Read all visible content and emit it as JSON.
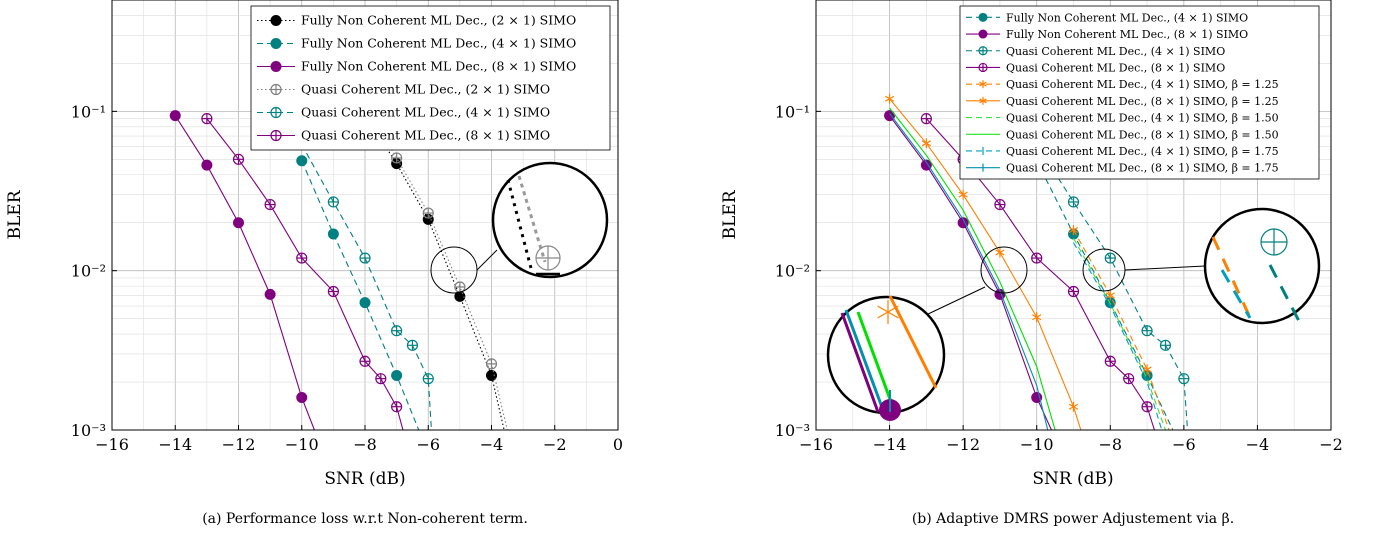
{
  "chart_data": [
    {
      "type": "line",
      "caption": "(a) Performance loss w.r.t Non-coherent term.",
      "xlabel": "SNR (dB)",
      "ylabel": "BLER",
      "xlim": [
        -16,
        0
      ],
      "ylim": [
        0.001,
        0.5
      ],
      "yscale": "log",
      "grid": true,
      "legend_placement": "top-right",
      "xticks": [
        -16,
        -14,
        -12,
        -10,
        -8,
        -6,
        -4,
        -2,
        0
      ],
      "xtick_labels": [
        "−16",
        "−14",
        "−12",
        "−10",
        "−8",
        "−6",
        "−4",
        "−2",
        "0"
      ],
      "yticks": [
        0.1,
        0.01,
        0.001
      ],
      "ytick_labels": [
        "10⁻¹",
        "10⁻²",
        "10⁻³"
      ],
      "series": [
        {
          "name": "Fully Non Coherent ML Dec., (2 × 1) SIMO",
          "color": "#000000",
          "dash": "1.5,2.5",
          "marker": "filled",
          "x": [
            -8,
            -7,
            -6,
            -5,
            -4,
            -3.6
          ],
          "y": [
            0.095,
            0.047,
            0.021,
            0.0069,
            0.0022,
            0.001
          ],
          "markers_upto": 5
        },
        {
          "name": "Fully Non Coherent ML Dec., (4 × 1) SIMO",
          "color": "#008080",
          "dash": "6,4",
          "marker": "filled",
          "x": [
            -10,
            -9,
            -8,
            -7,
            -6.3
          ],
          "y": [
            0.049,
            0.017,
            0.0063,
            0.0022,
            0.001
          ],
          "markers_upto": 4
        },
        {
          "name": "Fully Non Coherent ML Dec., (8 × 1) SIMO",
          "color": "#800080",
          "dash": "",
          "marker": "filled",
          "x": [
            -14,
            -13,
            -12,
            -11,
            -10,
            -9.6
          ],
          "y": [
            0.094,
            0.046,
            0.02,
            0.0071,
            0.0016,
            0.001
          ],
          "markers_upto": 5
        },
        {
          "name": "Quasi Coherent ML Dec., (2 × 1) SIMO",
          "color": "#808080",
          "dash": "1.5,2.5",
          "marker": "oplus",
          "x": [
            -8,
            -7,
            -6,
            -5,
            -4,
            -3.5
          ],
          "y": [
            0.11,
            0.051,
            0.023,
            0.0079,
            0.0026,
            0.001
          ],
          "markers_upto": 5
        },
        {
          "name": "Quasi Coherent ML Dec., (4 × 1) SIMO",
          "color": "#008080",
          "dash": "6,4",
          "marker": "oplus",
          "x": [
            -10,
            -9,
            -8,
            -7,
            -6.5,
            -6,
            -5.9
          ],
          "y": [
            0.062,
            0.027,
            0.012,
            0.0042,
            0.0034,
            0.0021,
            0.001
          ],
          "markers_upto": 6
        },
        {
          "name": "Quasi Coherent ML Dec., (8 × 1) SIMO",
          "color": "#800080",
          "dash": "",
          "marker": "oplus",
          "x": [
            -13,
            -12,
            -11,
            -10,
            -9,
            -8,
            -7.5,
            -7,
            -6.8
          ],
          "y": [
            0.09,
            0.05,
            0.026,
            0.012,
            0.0074,
            0.0027,
            0.0021,
            0.0014,
            0.001
          ],
          "markers_upto": 8
        }
      ]
    },
    {
      "type": "line",
      "caption": "(b) Adaptive DMRS power Adjustement via β.",
      "xlabel": "SNR (dB)",
      "ylabel": "BLER",
      "xlim": [
        -16,
        -2
      ],
      "ylim": [
        0.001,
        0.5
      ],
      "yscale": "log",
      "grid": true,
      "legend_placement": "top-right",
      "xticks": [
        -16,
        -14,
        -12,
        -10,
        -8,
        -6,
        -4,
        -2
      ],
      "xtick_labels": [
        "−16",
        "−14",
        "−12",
        "−10",
        "−8",
        "−6",
        "−4",
        "−2"
      ],
      "yticks": [
        0.1,
        0.01,
        0.001
      ],
      "ytick_labels": [
        "10⁻¹",
        "10⁻²",
        "10⁻³"
      ],
      "series": [
        {
          "name": "Fully Non Coherent ML Dec., (4 × 1) SIMO",
          "color": "#008080",
          "dash": "6,4",
          "marker": "filled",
          "x": [
            -10,
            -9,
            -8,
            -7,
            -6.3
          ],
          "y": [
            0.049,
            0.017,
            0.0063,
            0.0022,
            0.001
          ],
          "markers_upto": 4
        },
        {
          "name": "Fully Non Coherent ML Dec., (8 × 1) SIMO",
          "color": "#800080",
          "dash": "",
          "marker": "filled",
          "x": [
            -14,
            -13,
            -12,
            -11,
            -10,
            -9.6
          ],
          "y": [
            0.094,
            0.046,
            0.02,
            0.0071,
            0.0016,
            0.001
          ],
          "markers_upto": 5
        },
        {
          "name": "Quasi Coherent ML Dec., (4 × 1) SIMO",
          "color": "#008080",
          "dash": "6,4",
          "marker": "oplus",
          "x": [
            -10,
            -9,
            -8,
            -7,
            -6.5,
            -6,
            -5.9
          ],
          "y": [
            0.062,
            0.027,
            0.012,
            0.0042,
            0.0034,
            0.0021,
            0.001
          ],
          "markers_upto": 6
        },
        {
          "name": "Quasi Coherent ML Dec., (8 × 1) SIMO",
          "color": "#800080",
          "dash": "",
          "marker": "oplus",
          "x": [
            -13,
            -12,
            -11,
            -10,
            -9,
            -8,
            -7.5,
            -7,
            -6.8
          ],
          "y": [
            0.09,
            0.05,
            0.026,
            0.012,
            0.0074,
            0.0027,
            0.0021,
            0.0014,
            0.001
          ],
          "markers_upto": 8
        },
        {
          "name": "Quasi Coherent ML Dec., (4 × 1) SIMO, β = 1.25",
          "color": "#FF8000",
          "dash": "6,4",
          "marker": "star",
          "x": [
            -9,
            -8,
            -7,
            -6.4
          ],
          "y": [
            0.018,
            0.007,
            0.0024,
            0.001
          ],
          "markers_upto": 3
        },
        {
          "name": "Quasi Coherent ML Dec., (8 × 1) SIMO, β = 1.25",
          "color": "#FF8000",
          "dash": "",
          "marker": "star",
          "x": [
            -14,
            -13,
            -12,
            -11,
            -10,
            -9,
            -8.8
          ],
          "y": [
            0.12,
            0.063,
            0.03,
            0.013,
            0.0051,
            0.0014,
            0.001
          ],
          "markers_upto": 6
        },
        {
          "name": "Quasi Coherent ML Dec., (4 × 1) SIMO, β = 1.50",
          "color": "#40E040",
          "dash": "6,4",
          "marker": "none",
          "x": [
            -9,
            -8,
            -7,
            -6.5
          ],
          "y": [
            0.016,
            0.0062,
            0.0021,
            0.001
          ],
          "markers_upto": 0
        },
        {
          "name": "Quasi Coherent ML Dec., (8 × 1) SIMO, β = 1.50",
          "color": "#00E000",
          "dash": "",
          "marker": "none",
          "x": [
            -14,
            -13,
            -12,
            -11,
            -10,
            -9.5
          ],
          "y": [
            0.105,
            0.053,
            0.024,
            0.0085,
            0.0025,
            0.001
          ],
          "markers_upto": 0
        },
        {
          "name": "Quasi Coherent ML Dec., (4 × 1) SIMO, β = 1.75",
          "color": "#00A0C0",
          "dash": "6,4",
          "marker": "vbar",
          "x": [
            -9,
            -8,
            -7,
            -6.6
          ],
          "y": [
            0.015,
            0.006,
            0.002,
            0.001
          ],
          "markers_upto": 0
        },
        {
          "name": "Quasi Coherent ML Dec., (8 × 1) SIMO, β = 1.75",
          "color": "#0090B0",
          "dash": "",
          "marker": "vbar",
          "x": [
            -14,
            -13,
            -12,
            -11,
            -10,
            -9.7
          ],
          "y": [
            0.097,
            0.048,
            0.021,
            0.0075,
            0.0019,
            0.001
          ],
          "markers_upto": 0
        }
      ]
    }
  ]
}
